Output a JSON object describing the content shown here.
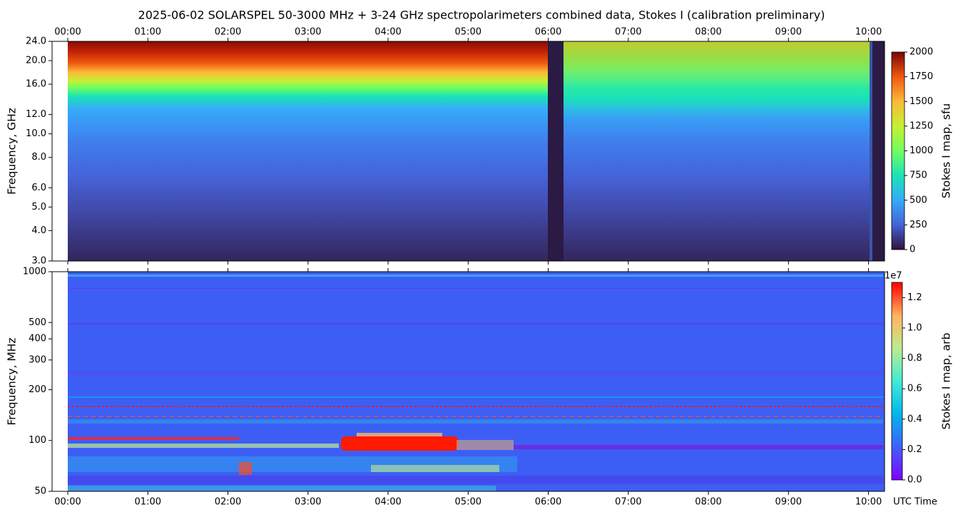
{
  "title": "2025-06-02  SOLARSPEL  50-3000 MHz  +  3-24 GHz  spectropolarimeters combined data,  Stokes I  (calibration preliminary)",
  "chart_data": [
    {
      "type": "heatmap",
      "ylabel": "Frequency, GHz",
      "yscale": "log",
      "ylim": [
        3,
        24
      ],
      "yticks": [
        {
          "value": 3,
          "label": "3.0"
        },
        {
          "value": 4,
          "label": "4.0"
        },
        {
          "value": 5,
          "label": "5.0"
        },
        {
          "value": 6,
          "label": "6.0"
        },
        {
          "value": 8,
          "label": "8.0"
        },
        {
          "value": 10,
          "label": "10.0"
        },
        {
          "value": 12,
          "label": "12.0"
        },
        {
          "value": 16,
          "label": "16.0"
        },
        {
          "value": 20,
          "label": "20.0"
        },
        {
          "value": 24,
          "label": "24.0"
        }
      ],
      "xlim": [
        -0.196,
        10.2
      ],
      "xaxis_position": "top",
      "xticks": [
        {
          "value": 0,
          "label": "00:00"
        },
        {
          "value": 1,
          "label": "01:00"
        },
        {
          "value": 2,
          "label": "02:00"
        },
        {
          "value": 3,
          "label": "03:00"
        },
        {
          "value": 4,
          "label": "04:00"
        },
        {
          "value": 5,
          "label": "05:00"
        },
        {
          "value": 6,
          "label": "06:00"
        },
        {
          "value": 7,
          "label": "07:00"
        },
        {
          "value": 8,
          "label": "08:00"
        },
        {
          "value": 9,
          "label": "09:00"
        },
        {
          "value": 10,
          "label": "10:00"
        }
      ],
      "colormap": "turbo",
      "colorbar": {
        "label": "Stokes I map, sfu",
        "lim": [
          0,
          2000
        ],
        "ticks": [
          0,
          250,
          500,
          750,
          1000,
          1250,
          1500,
          1750,
          2000
        ]
      }
    },
    {
      "type": "heatmap",
      "ylabel": "Frequency, MHz",
      "yscale": "log",
      "ylim": [
        50,
        1000
      ],
      "yticks": [
        50,
        100,
        200,
        300,
        400,
        500,
        1000
      ],
      "xlim": [
        -0.196,
        10.2
      ],
      "xaxis_position": "bottom",
      "xlabel": "UTC Time",
      "xticks": [
        {
          "value": 0,
          "label": "00:00"
        },
        {
          "value": 1,
          "label": "01:00"
        },
        {
          "value": 2,
          "label": "02:00"
        },
        {
          "value": 3,
          "label": "03:00"
        },
        {
          "value": 4,
          "label": "04:00"
        },
        {
          "value": 5,
          "label": "05:00"
        },
        {
          "value": 6,
          "label": "06:00"
        },
        {
          "value": 7,
          "label": "07:00"
        },
        {
          "value": 8,
          "label": "08:00"
        },
        {
          "value": 9,
          "label": "09:00"
        },
        {
          "value": 10,
          "label": "10:00"
        }
      ],
      "colormap": "rainbow",
      "colorbar": {
        "label": "Stokes I map, arb",
        "offset_text": "1e7",
        "lim": [
          0,
          1.3
        ],
        "ticks": [
          {
            "value": 0,
            "label": "0.0"
          },
          {
            "value": 0.2,
            "label": "0.2"
          },
          {
            "value": 0.4,
            "label": "0.4"
          },
          {
            "value": 0.6,
            "label": "0.6"
          },
          {
            "value": 0.8,
            "label": "0.8"
          },
          {
            "value": 1,
            "label": "1.0"
          },
          {
            "value": 1.2,
            "label": "1.2"
          }
        ]
      }
    }
  ]
}
